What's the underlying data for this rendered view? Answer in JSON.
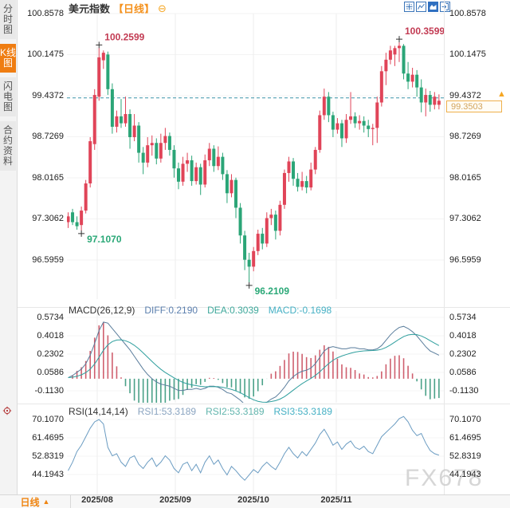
{
  "sidebar": {
    "tabs": [
      {
        "label": "分时图",
        "active": false
      },
      {
        "label": "K线图",
        "active": true
      },
      {
        "label": "闪电图",
        "active": false
      },
      {
        "label": "合约资料",
        "active": false
      }
    ]
  },
  "header": {
    "title": "美元指数",
    "period_tag": "【日线】",
    "collapse_icon": "⊖"
  },
  "toolbar": {
    "icons": [
      "crosshair",
      "line-chart",
      "area-chart",
      "exit-fullscreen"
    ],
    "active_icon": "area-chart"
  },
  "main_chart": {
    "y_axis_labels": [
      "100.8578",
      "100.1475",
      "99.4372",
      "98.7269",
      "98.0165",
      "97.3062",
      "96.5959"
    ],
    "dashed_line_price": 99.4,
    "price_box": {
      "value": "99.3503",
      "arrow": "▲"
    },
    "annotations": [
      {
        "label": "100.2599",
        "index": 7,
        "type": "high",
        "color": "#c23a52"
      },
      {
        "label": "100.3599",
        "index": 75,
        "type": "high",
        "color": "#c23a52"
      },
      {
        "label": "97.1070",
        "index": 3,
        "type": "low",
        "color": "#2aa877"
      },
      {
        "label": "96.2109",
        "index": 41,
        "type": "low",
        "color": "#2aa877"
      }
    ]
  },
  "macd_panel": {
    "title": "MACD(26,12,9)",
    "values": [
      {
        "label": "DIFF:0.2190",
        "color": "#5b7fae"
      },
      {
        "label": "DEA:0.3039",
        "color": "#3fa89b"
      },
      {
        "label": "MACD:-0.1698",
        "color": "#45b0c4"
      }
    ],
    "y_axis_labels": [
      "0.5734",
      "0.4018",
      "0.2302",
      "0.0586",
      "-0.1130"
    ]
  },
  "rsi_panel": {
    "title": "RSI(14,14,14)",
    "values": [
      {
        "label": "RSI1:53.3189",
        "color": "#8aa4c0"
      },
      {
        "label": "RSI2:53.3189",
        "color": "#62b5ad"
      },
      {
        "label": "RSI3:53.3189",
        "color": "#45b0c4"
      }
    ],
    "y_axis_labels": [
      "70.1070",
      "61.4695",
      "52.8319",
      "44.1943"
    ]
  },
  "footer": {
    "period_label": "日线",
    "period_arrow": "▲",
    "x_axis_labels": [
      "2025/08",
      "2025/09",
      "2025/10",
      "2025/11"
    ]
  },
  "watermark": "FX678",
  "colors": {
    "up": "#e04458",
    "down": "#2ba577",
    "hist_up": "#cf5f6e",
    "hist_down": "#4aa188",
    "diff_line": "#5a7d9c",
    "dea_line": "#2f9f9e",
    "rsi_line": "#6b9cc2",
    "dashed_line": "#3d93a8",
    "accent_orange": "#ef8512",
    "icon_blue": "#3a74b8",
    "annotation_high": "#c23a52",
    "annotation_low": "#2aa877",
    "price_box_border": "#eeb04c",
    "price_box_text": "#d2a35a"
  },
  "chart_data": {
    "type": "candlestick",
    "title": "美元指数【日线】",
    "x_labels": [
      "2025/08",
      "2025/09",
      "2025/10",
      "2025/11"
    ],
    "main_y_range": [
      96.2109,
      100.8578
    ],
    "macd_y_range": [
      -0.25,
      0.5734
    ],
    "rsi_y_range": [
      40,
      71.5
    ],
    "legend_position": "top-left-inline",
    "grid": "faint",
    "candles": [
      [
        97.25,
        97.42,
        97.15,
        97.35
      ],
      [
        97.42,
        97.48,
        97.2,
        97.25
      ],
      [
        97.25,
        97.35,
        97.12,
        97.18
      ],
      [
        97.2,
        97.52,
        97.107,
        97.45
      ],
      [
        97.45,
        97.98,
        97.4,
        97.92
      ],
      [
        97.92,
        98.72,
        97.85,
        98.65
      ],
      [
        98.6,
        99.55,
        98.5,
        99.45
      ],
      [
        99.42,
        100.2599,
        99.35,
        100.1
      ],
      [
        100.05,
        100.22,
        99.9,
        100.18
      ],
      [
        100.15,
        100.2,
        99.45,
        99.55
      ],
      [
        99.55,
        99.65,
        98.78,
        98.9
      ],
      [
        98.9,
        99.18,
        98.8,
        99.08
      ],
      [
        99.08,
        99.38,
        98.88,
        98.96
      ],
      [
        98.96,
        99.42,
        98.9,
        99.12
      ],
      [
        99.12,
        99.2,
        98.52,
        98.72
      ],
      [
        98.72,
        99.12,
        98.65,
        98.92
      ],
      [
        98.92,
        98.98,
        98.28,
        98.45
      ],
      [
        98.45,
        98.55,
        98.08,
        98.28
      ],
      [
        98.28,
        98.72,
        98.2,
        98.58
      ],
      [
        98.58,
        98.75,
        98.4,
        98.62
      ],
      [
        98.62,
        98.7,
        98.25,
        98.35
      ],
      [
        98.35,
        98.78,
        98.28,
        98.62
      ],
      [
        98.62,
        98.88,
        98.5,
        98.74
      ],
      [
        98.74,
        98.8,
        98.4,
        98.5
      ],
      [
        98.5,
        98.58,
        98.02,
        98.18
      ],
      [
        98.18,
        98.28,
        97.82,
        97.95
      ],
      [
        97.95,
        98.38,
        97.88,
        98.26
      ],
      [
        98.26,
        98.45,
        98.12,
        98.32
      ],
      [
        98.32,
        98.4,
        97.88,
        97.96
      ],
      [
        97.96,
        98.28,
        97.9,
        98.2
      ],
      [
        98.2,
        98.26,
        97.72,
        97.9
      ],
      [
        97.9,
        98.42,
        97.85,
        98.32
      ],
      [
        98.32,
        98.62,
        98.22,
        98.52
      ],
      [
        98.52,
        98.58,
        98.12,
        98.22
      ],
      [
        98.22,
        98.56,
        98.15,
        98.38
      ],
      [
        98.38,
        98.45,
        97.98,
        98.08
      ],
      [
        98.08,
        98.15,
        97.58,
        97.75
      ],
      [
        97.75,
        98.08,
        97.68,
        97.98
      ],
      [
        97.98,
        98.02,
        97.32,
        97.5
      ],
      [
        97.5,
        97.58,
        96.88,
        97.02
      ],
      [
        97.02,
        97.1,
        96.42,
        96.6
      ],
      [
        96.6,
        96.72,
        96.2109,
        96.48
      ],
      [
        96.48,
        96.82,
        96.4,
        96.75
      ],
      [
        96.75,
        97.12,
        96.68,
        97.05
      ],
      [
        97.05,
        97.15,
        96.78,
        96.88
      ],
      [
        96.88,
        97.42,
        96.82,
        97.32
      ],
      [
        97.32,
        97.48,
        97.2,
        97.38
      ],
      [
        97.38,
        97.45,
        96.95,
        97.1
      ],
      [
        97.1,
        97.62,
        97.02,
        97.55
      ],
      [
        97.55,
        98.16,
        97.48,
        98.1
      ],
      [
        98.1,
        98.38,
        97.95,
        98.3
      ],
      [
        98.3,
        98.36,
        97.88,
        98.0
      ],
      [
        98.0,
        98.1,
        97.78,
        97.86
      ],
      [
        97.86,
        98.12,
        97.8,
        97.96
      ],
      [
        97.96,
        98.05,
        97.75,
        97.85
      ],
      [
        97.85,
        98.28,
        97.8,
        98.16
      ],
      [
        98.16,
        98.55,
        98.08,
        98.5
      ],
      [
        98.5,
        99.18,
        98.45,
        99.1
      ],
      [
        99.1,
        99.56,
        99.02,
        99.42
      ],
      [
        99.42,
        99.5,
        98.98,
        99.1
      ],
      [
        99.1,
        99.16,
        98.72,
        98.85
      ],
      [
        98.85,
        99.05,
        98.78,
        98.96
      ],
      [
        98.96,
        99.02,
        98.55,
        98.7
      ],
      [
        98.7,
        99.12,
        98.62,
        99.02
      ],
      [
        99.02,
        99.5,
        98.95,
        99.08
      ],
      [
        99.08,
        99.15,
        98.88,
        98.96
      ],
      [
        98.96,
        99.1,
        98.85,
        99.0
      ],
      [
        99.0,
        99.08,
        98.8,
        98.92
      ],
      [
        98.92,
        99.02,
        98.72,
        98.86
      ],
      [
        98.86,
        98.95,
        98.58,
        98.88
      ],
      [
        98.88,
        99.42,
        98.62,
        99.32
      ],
      [
        99.32,
        99.95,
        99.25,
        99.86
      ],
      [
        99.86,
        100.18,
        99.62,
        100.06
      ],
      [
        100.06,
        100.3,
        99.98,
        100.22
      ],
      [
        100.15,
        100.3,
        99.95,
        100.26
      ],
      [
        100.26,
        100.3599,
        100.02,
        100.3
      ],
      [
        100.3,
        100.33,
        99.72,
        99.82
      ],
      [
        99.82,
        100.02,
        99.55,
        99.68
      ],
      [
        99.68,
        99.92,
        99.58,
        99.8
      ],
      [
        99.8,
        99.88,
        99.42,
        99.58
      ],
      [
        99.58,
        99.72,
        99.15,
        99.32
      ],
      [
        99.32,
        99.56,
        99.08,
        99.45
      ],
      [
        99.45,
        99.52,
        99.16,
        99.28
      ],
      [
        99.28,
        99.5,
        99.2,
        99.42
      ],
      [
        99.28,
        99.46,
        99.2,
        99.35
      ]
    ],
    "macd_diff": [
      0.01,
      0.03,
      0.06,
      0.09,
      0.14,
      0.22,
      0.33,
      0.45,
      0.53,
      0.52,
      0.47,
      0.42,
      0.37,
      0.32,
      0.27,
      0.21,
      0.15,
      0.09,
      0.04,
      0.0,
      -0.03,
      -0.05,
      -0.06,
      -0.07,
      -0.09,
      -0.11,
      -0.11,
      -0.1,
      -0.1,
      -0.09,
      -0.1,
      -0.09,
      -0.07,
      -0.07,
      -0.08,
      -0.1,
      -0.13,
      -0.14,
      -0.17,
      -0.2,
      -0.24,
      -0.27,
      -0.28,
      -0.27,
      -0.25,
      -0.22,
      -0.19,
      -0.17,
      -0.13,
      -0.08,
      -0.02,
      0.02,
      0.05,
      0.07,
      0.08,
      0.1,
      0.14,
      0.2,
      0.26,
      0.29,
      0.3,
      0.29,
      0.28,
      0.28,
      0.29,
      0.29,
      0.28,
      0.28,
      0.27,
      0.27,
      0.28,
      0.31,
      0.36,
      0.41,
      0.45,
      0.48,
      0.49,
      0.47,
      0.44,
      0.4,
      0.35,
      0.3,
      0.26,
      0.24,
      0.22
    ],
    "macd_last": {
      "diff": 0.219,
      "dea": 0.3039,
      "macd": -0.1698
    },
    "rsi": [
      46,
      50,
      55,
      58,
      62,
      66,
      69,
      70.1,
      68,
      57,
      53,
      54,
      50,
      48,
      52,
      53,
      49,
      47,
      50,
      52,
      48,
      50,
      53,
      51,
      47,
      45,
      49,
      50,
      46,
      49,
      45,
      50,
      53,
      49,
      51,
      47,
      44,
      48,
      46,
      43.5,
      41.5,
      44,
      46.5,
      45,
      48,
      50,
      48,
      46.5,
      50,
      54,
      57,
      54,
      52,
      55,
      53,
      56,
      59,
      63,
      65.5,
      62,
      58,
      59.5,
      56,
      58.5,
      60,
      57,
      56,
      57.5,
      55,
      54,
      58,
      62,
      64,
      66,
      68,
      70.5,
      71.5,
      69,
      65,
      62.5,
      63.5,
      59,
      55.5,
      54,
      53.3
    ],
    "rsi_last": 53.3189
  }
}
